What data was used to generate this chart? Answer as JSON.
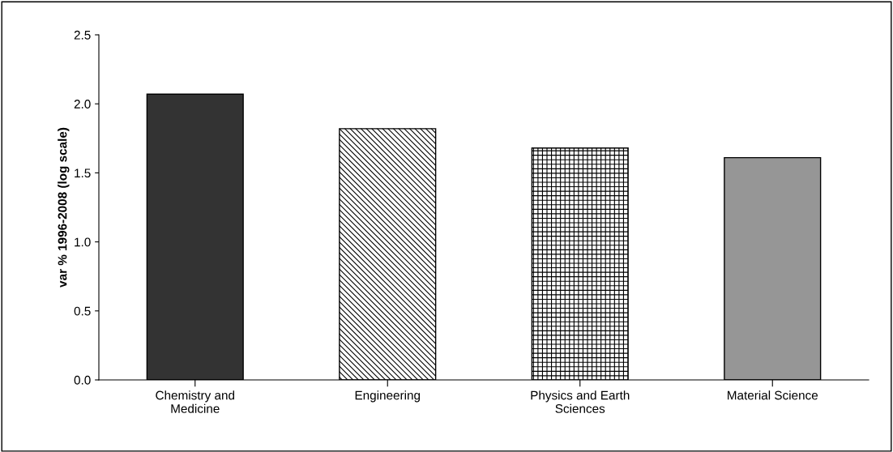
{
  "chart_data": {
    "type": "bar",
    "ylabel": "var % 1996-2008 (log scale)",
    "categories": [
      "Chemistry and\nMedicine",
      "Engineering",
      "Physics and Earth\nSciences",
      "Material Science"
    ],
    "values": [
      2.07,
      1.82,
      1.68,
      1.61
    ],
    "colors": [
      "#333333",
      "#000000",
      "#000000",
      "#969696"
    ],
    "ylim": [
      0,
      2.5
    ],
    "yticks": [
      {
        "value": 0,
        "label": "0.0"
      },
      {
        "value": 0.5,
        "label": "0.5"
      },
      {
        "value": 1,
        "label": "1.0"
      },
      {
        "value": 1.5,
        "label": "1.5"
      },
      {
        "value": 2,
        "label": "2.0"
      },
      {
        "value": 2.5,
        "label": "2.5"
      }
    ],
    "grid": false,
    "legend": false
  }
}
